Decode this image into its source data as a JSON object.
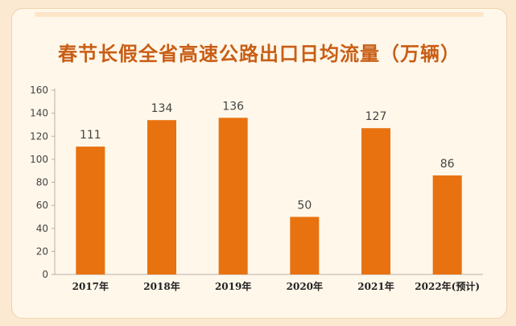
{
  "colors": {
    "bar": "#e8720f",
    "axis": "#b8b0a8",
    "title": "#c85e15",
    "label": "#444444"
  },
  "chart_data": {
    "type": "bar",
    "title": "春节长假全省高速公路出口日均流量（万辆）",
    "categories": [
      "2017年",
      "2018年",
      "2019年",
      "2020年",
      "2021年",
      "2022年(预计)"
    ],
    "values": [
      111,
      134,
      136,
      50,
      127,
      86
    ],
    "ylim": [
      0,
      160
    ],
    "yticks": [
      "0",
      "20",
      "40",
      "60",
      "80",
      "100",
      "120",
      "140",
      "160"
    ],
    "grid": false,
    "data_labels": [
      "111",
      "134",
      "136",
      "50",
      "127",
      "86"
    ]
  }
}
